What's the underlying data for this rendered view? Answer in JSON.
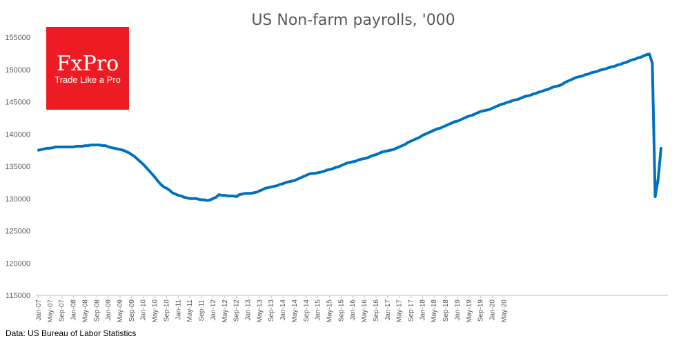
{
  "brand": {
    "name": "FxPro",
    "tagline": "Trade Like a Pro",
    "color": "#ed1c24"
  },
  "source_note": "Data: US Bureau of Labor Statistics",
  "chart_data": {
    "type": "line",
    "title": "US Non-farm payrolls, '000",
    "xlabel": "",
    "ylabel": "",
    "ylim": [
      115000,
      155000
    ],
    "yticks": [
      115000,
      120000,
      125000,
      130000,
      135000,
      140000,
      145000,
      150000,
      155000
    ],
    "grid": false,
    "line_color": "#0070c0",
    "x_tick_labels": [
      "Jan-07",
      "May-07",
      "Sep-07",
      "Jan-08",
      "May-08",
      "Sep-08",
      "Jan-09",
      "May-09",
      "Sep-09",
      "Jan-10",
      "May-10",
      "Sep-10",
      "Jan-11",
      "May-11",
      "Sep-11",
      "Jan-12",
      "May-12",
      "Sep-12",
      "Jan-13",
      "May-13",
      "Sep-13",
      "Jan-14",
      "May-14",
      "Sep-14",
      "Jan-15",
      "May-15",
      "Sep-15",
      "Jan-16",
      "May-16",
      "Sep-16",
      "Jan-17",
      "May-17",
      "Sep-17",
      "Jan-18",
      "May-18",
      "Sep-18",
      "Jan-19",
      "May-19",
      "Sep-19",
      "Jan-20",
      "May-20"
    ],
    "series": [
      {
        "values": [
          137500,
          137600,
          137700,
          137800,
          137800,
          137900,
          138000,
          138000,
          138000,
          138000,
          138000,
          138000,
          138000,
          138100,
          138100,
          138100,
          138200,
          138200,
          138300,
          138300,
          138300,
          138300,
          138200,
          138200,
          138000,
          137900,
          137800,
          137700,
          137600,
          137500,
          137300,
          137100,
          136800,
          136500,
          136100,
          135700,
          135300,
          134800,
          134300,
          133800,
          133300,
          132700,
          132200,
          131800,
          131600,
          131300,
          130900,
          130700,
          130500,
          130400,
          130200,
          130100,
          130000,
          130000,
          130000,
          129900,
          129800,
          129800,
          129700,
          129800,
          130000,
          130200,
          130600,
          130500,
          130500,
          130400,
          130400,
          130400,
          130300,
          130600,
          130700,
          130800,
          130800,
          130800,
          130900,
          131000,
          131200,
          131400,
          131600,
          131700,
          131800,
          131900,
          132000,
          132200,
          132300,
          132500,
          132600,
          132700,
          132800,
          133000,
          133200,
          133400,
          133600,
          133800,
          133900,
          133900,
          134000,
          134100,
          134200,
          134400,
          134500,
          134600,
          134800,
          134900,
          135100,
          135300,
          135500,
          135600,
          135700,
          135800,
          136000,
          136100,
          136200,
          136300,
          136500,
          136700,
          136800,
          137000,
          137200,
          137300,
          137400,
          137500,
          137600,
          137800,
          138000,
          138200,
          138400,
          138700,
          138900,
          139100,
          139300,
          139500,
          139800,
          140000,
          140200,
          140400,
          140600,
          140800,
          140900,
          141100,
          141300,
          141500,
          141700,
          141900,
          142000,
          142200,
          142400,
          142600,
          142800,
          142900,
          143100,
          143300,
          143500,
          143600,
          143700,
          143800,
          144000,
          144200,
          144400,
          144600,
          144700,
          144900,
          145000,
          145200,
          145300,
          145400,
          145600,
          145800,
          145900,
          146000,
          146200,
          146300,
          146500,
          146600,
          146800,
          146900,
          147100,
          147300,
          147400,
          147500,
          147700,
          148000,
          148200,
          148400,
          148600,
          148800,
          148900,
          149000,
          149200,
          149300,
          149500,
          149600,
          149700,
          149900,
          150000,
          150100,
          150300,
          150400,
          150500,
          150700,
          150800,
          151000,
          151100,
          151300,
          151500,
          151600,
          151800,
          151900,
          152100,
          152300,
          152400,
          151000,
          130300,
          133000,
          137800
        ]
      }
    ]
  }
}
